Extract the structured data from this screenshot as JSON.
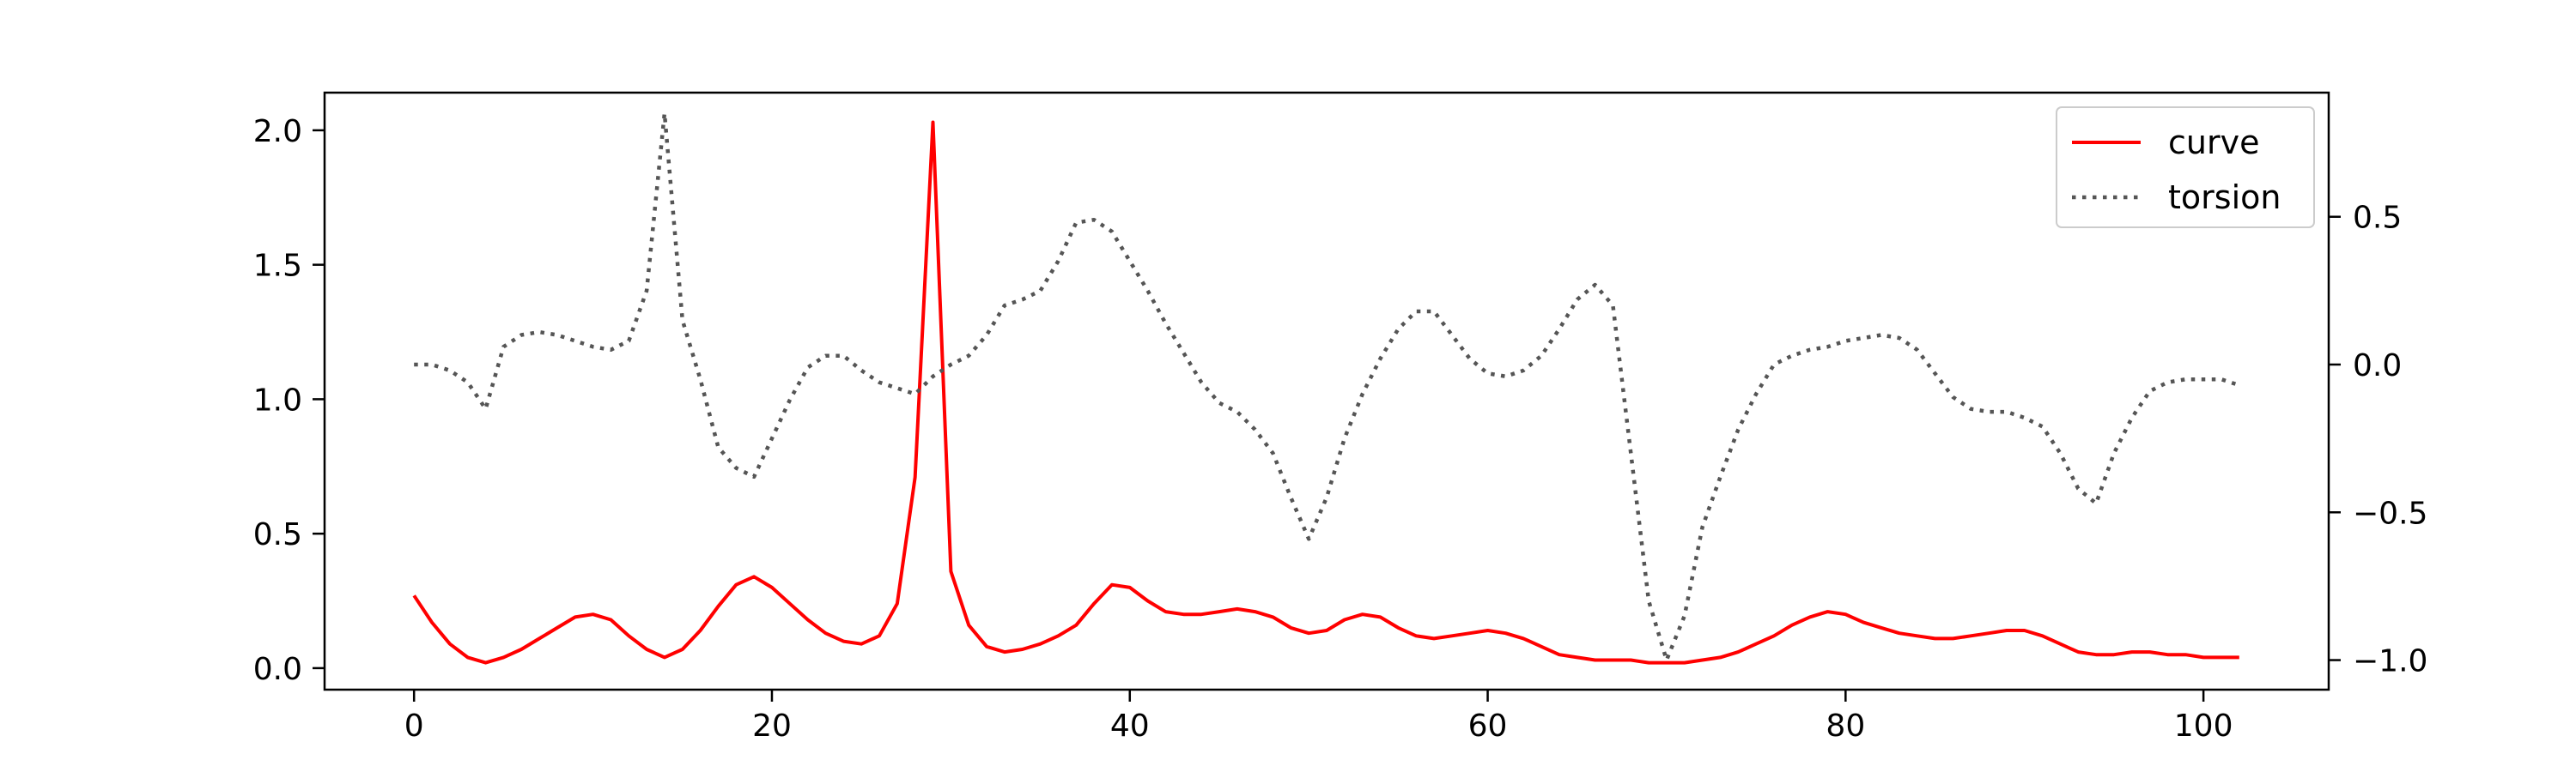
{
  "chart_data": {
    "type": "line",
    "x_axis": {
      "range": [
        -5,
        107
      ],
      "ticks": [
        0,
        20,
        40,
        60,
        80,
        100
      ],
      "tick_labels": [
        "0",
        "20",
        "40",
        "60",
        "80",
        "100"
      ]
    },
    "y_left": {
      "range": [
        -0.08,
        2.14
      ],
      "ticks": [
        0.0,
        0.5,
        1.0,
        1.5,
        2.0
      ],
      "tick_labels": [
        "0.0",
        "0.5",
        "1.0",
        "1.5",
        "2.0"
      ]
    },
    "y_right": {
      "range": [
        -1.1,
        0.92
      ],
      "ticks": [
        -1.0,
        -0.5,
        0.0,
        0.5
      ],
      "tick_labels": [
        "−1.0",
        "−0.5",
        "0.0",
        "0.5"
      ]
    },
    "grid": false,
    "legend": {
      "placement": "top-right"
    },
    "series": [
      {
        "name": "curve",
        "axis": "left",
        "style": "solid",
        "color": "#ff0000",
        "x": [
          0,
          1,
          2,
          3,
          4,
          5,
          6,
          7,
          8,
          9,
          10,
          11,
          12,
          13,
          14,
          15,
          16,
          17,
          18,
          19,
          20,
          21,
          22,
          23,
          24,
          25,
          26,
          27,
          28,
          29,
          30,
          31,
          32,
          33,
          34,
          35,
          36,
          37,
          38,
          39,
          40,
          41,
          42,
          43,
          44,
          45,
          46,
          47,
          48,
          49,
          50,
          51,
          52,
          53,
          54,
          55,
          56,
          57,
          58,
          59,
          60,
          61,
          62,
          63,
          64,
          65,
          66,
          67,
          68,
          69,
          70,
          71,
          72,
          73,
          74,
          75,
          76,
          77,
          78,
          79,
          80,
          81,
          82,
          83,
          84,
          85,
          86,
          87,
          88,
          89,
          90,
          91,
          92,
          93,
          94,
          95,
          96,
          97,
          98,
          99,
          100,
          101,
          102
        ],
        "y": [
          0.27,
          0.17,
          0.09,
          0.04,
          0.02,
          0.04,
          0.07,
          0.11,
          0.15,
          0.19,
          0.2,
          0.18,
          0.12,
          0.07,
          0.04,
          0.07,
          0.14,
          0.23,
          0.31,
          0.34,
          0.3,
          0.24,
          0.18,
          0.13,
          0.1,
          0.09,
          0.12,
          0.24,
          0.71,
          2.03,
          0.36,
          0.16,
          0.08,
          0.06,
          0.07,
          0.09,
          0.12,
          0.16,
          0.24,
          0.31,
          0.3,
          0.25,
          0.21,
          0.2,
          0.2,
          0.21,
          0.22,
          0.21,
          0.19,
          0.15,
          0.13,
          0.14,
          0.18,
          0.2,
          0.19,
          0.15,
          0.12,
          0.11,
          0.12,
          0.13,
          0.14,
          0.13,
          0.11,
          0.08,
          0.05,
          0.04,
          0.03,
          0.03,
          0.03,
          0.02,
          0.02,
          0.02,
          0.03,
          0.04,
          0.06,
          0.09,
          0.12,
          0.16,
          0.19,
          0.21,
          0.2,
          0.17,
          0.15,
          0.13,
          0.12,
          0.11,
          0.11,
          0.12,
          0.13,
          0.14,
          0.14,
          0.12,
          0.09,
          0.06,
          0.05,
          0.05,
          0.06,
          0.06,
          0.05,
          0.05,
          0.04,
          0.04,
          0.04
        ]
      },
      {
        "name": "torsion",
        "axis": "right",
        "style": "dotted",
        "color": "#555555",
        "x": [
          0,
          1,
          2,
          3,
          4,
          5,
          6,
          7,
          8,
          9,
          10,
          11,
          12,
          13,
          14,
          15,
          16,
          17,
          18,
          19,
          20,
          21,
          22,
          23,
          24,
          25,
          26,
          27,
          28,
          29,
          30,
          31,
          32,
          33,
          34,
          35,
          36,
          37,
          38,
          39,
          40,
          41,
          42,
          43,
          44,
          45,
          46,
          47,
          48,
          49,
          50,
          51,
          52,
          53,
          54,
          55,
          56,
          57,
          58,
          59,
          60,
          61,
          62,
          63,
          64,
          65,
          66,
          67,
          68,
          69,
          70,
          71,
          72,
          73,
          74,
          75,
          76,
          77,
          78,
          79,
          80,
          81,
          82,
          83,
          84,
          85,
          86,
          87,
          88,
          89,
          90,
          91,
          92,
          93,
          94,
          95,
          96,
          97,
          98,
          99,
          100,
          101,
          102
        ],
        "y": [
          0.0,
          0.0,
          -0.02,
          -0.06,
          -0.15,
          0.06,
          0.1,
          0.11,
          0.1,
          0.08,
          0.06,
          0.05,
          0.08,
          0.25,
          0.85,
          0.15,
          -0.05,
          -0.28,
          -0.35,
          -0.38,
          -0.25,
          -0.12,
          -0.01,
          0.03,
          0.03,
          -0.02,
          -0.06,
          -0.08,
          -0.1,
          -0.04,
          0.0,
          0.03,
          0.1,
          0.2,
          0.22,
          0.25,
          0.35,
          0.48,
          0.49,
          0.45,
          0.35,
          0.25,
          0.14,
          0.04,
          -0.06,
          -0.13,
          -0.16,
          -0.22,
          -0.3,
          -0.45,
          -0.59,
          -0.45,
          -0.25,
          -0.1,
          0.02,
          0.12,
          0.18,
          0.18,
          0.1,
          0.02,
          -0.03,
          -0.04,
          -0.02,
          0.03,
          0.12,
          0.22,
          0.27,
          0.2,
          -0.3,
          -0.8,
          -1.0,
          -0.85,
          -0.55,
          -0.38,
          -0.22,
          -0.1,
          0.0,
          0.03,
          0.05,
          0.06,
          0.08,
          0.09,
          0.1,
          0.09,
          0.05,
          -0.03,
          -0.11,
          -0.15,
          -0.16,
          -0.16,
          -0.18,
          -0.21,
          -0.3,
          -0.42,
          -0.47,
          -0.3,
          -0.18,
          -0.09,
          -0.06,
          -0.05,
          -0.05,
          -0.05,
          -0.07
        ]
      }
    ]
  }
}
